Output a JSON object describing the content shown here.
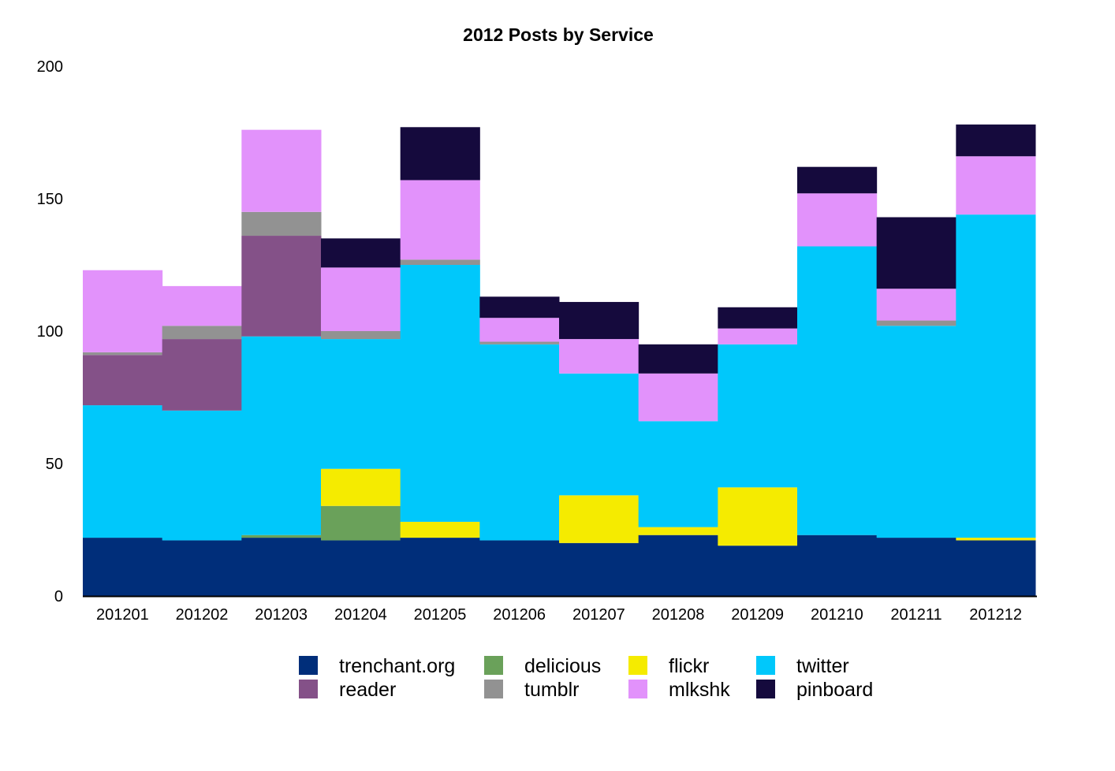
{
  "chart_data": {
    "type": "bar",
    "stacked": true,
    "title": "2012 Posts by Service",
    "xlabel": "",
    "ylabel": "",
    "ylim": [
      0,
      200
    ],
    "yticks": [
      0,
      50,
      100,
      150,
      200
    ],
    "grid": false,
    "legend_position": "bottom",
    "categories": [
      "201201",
      "201202",
      "201203",
      "201204",
      "201205",
      "201206",
      "201207",
      "201208",
      "201209",
      "201210",
      "201211",
      "201212"
    ],
    "series": [
      {
        "name": "trenchant.org",
        "color": "#002e7a",
        "values": [
          22,
          21,
          22,
          21,
          22,
          21,
          20,
          23,
          19,
          23,
          22,
          21
        ]
      },
      {
        "name": "delicious",
        "color": "#6aa15a",
        "values": [
          0,
          0,
          1,
          13,
          0,
          0,
          0,
          0,
          0,
          0,
          0,
          0
        ]
      },
      {
        "name": "flickr",
        "color": "#f5eb00",
        "values": [
          0,
          0,
          0,
          14,
          6,
          0,
          18,
          3,
          22,
          0,
          0,
          1
        ]
      },
      {
        "name": "twitter",
        "color": "#00c8fb",
        "values": [
          50,
          49,
          75,
          49,
          97,
          74,
          46,
          40,
          54,
          109,
          80,
          122
        ]
      },
      {
        "name": "reader",
        "color": "#845188",
        "values": [
          19,
          27,
          38,
          0,
          0,
          0,
          0,
          0,
          0,
          0,
          0,
          0
        ]
      },
      {
        "name": "tumblr",
        "color": "#929292",
        "values": [
          1,
          5,
          9,
          3,
          2,
          1,
          0,
          0,
          0,
          0,
          2,
          0
        ]
      },
      {
        "name": "mlkshk",
        "color": "#e292fb",
        "values": [
          31,
          15,
          31,
          24,
          30,
          9,
          13,
          18,
          6,
          20,
          12,
          22
        ]
      },
      {
        "name": "pinboard",
        "color": "#150a3d",
        "values": [
          0,
          0,
          0,
          11,
          20,
          8,
          14,
          11,
          8,
          10,
          27,
          12
        ]
      }
    ],
    "legend_order": [
      [
        "trenchant.org",
        "delicious",
        "flickr",
        "twitter"
      ],
      [
        "reader",
        "tumblr",
        "mlkshk",
        "pinboard"
      ]
    ]
  }
}
